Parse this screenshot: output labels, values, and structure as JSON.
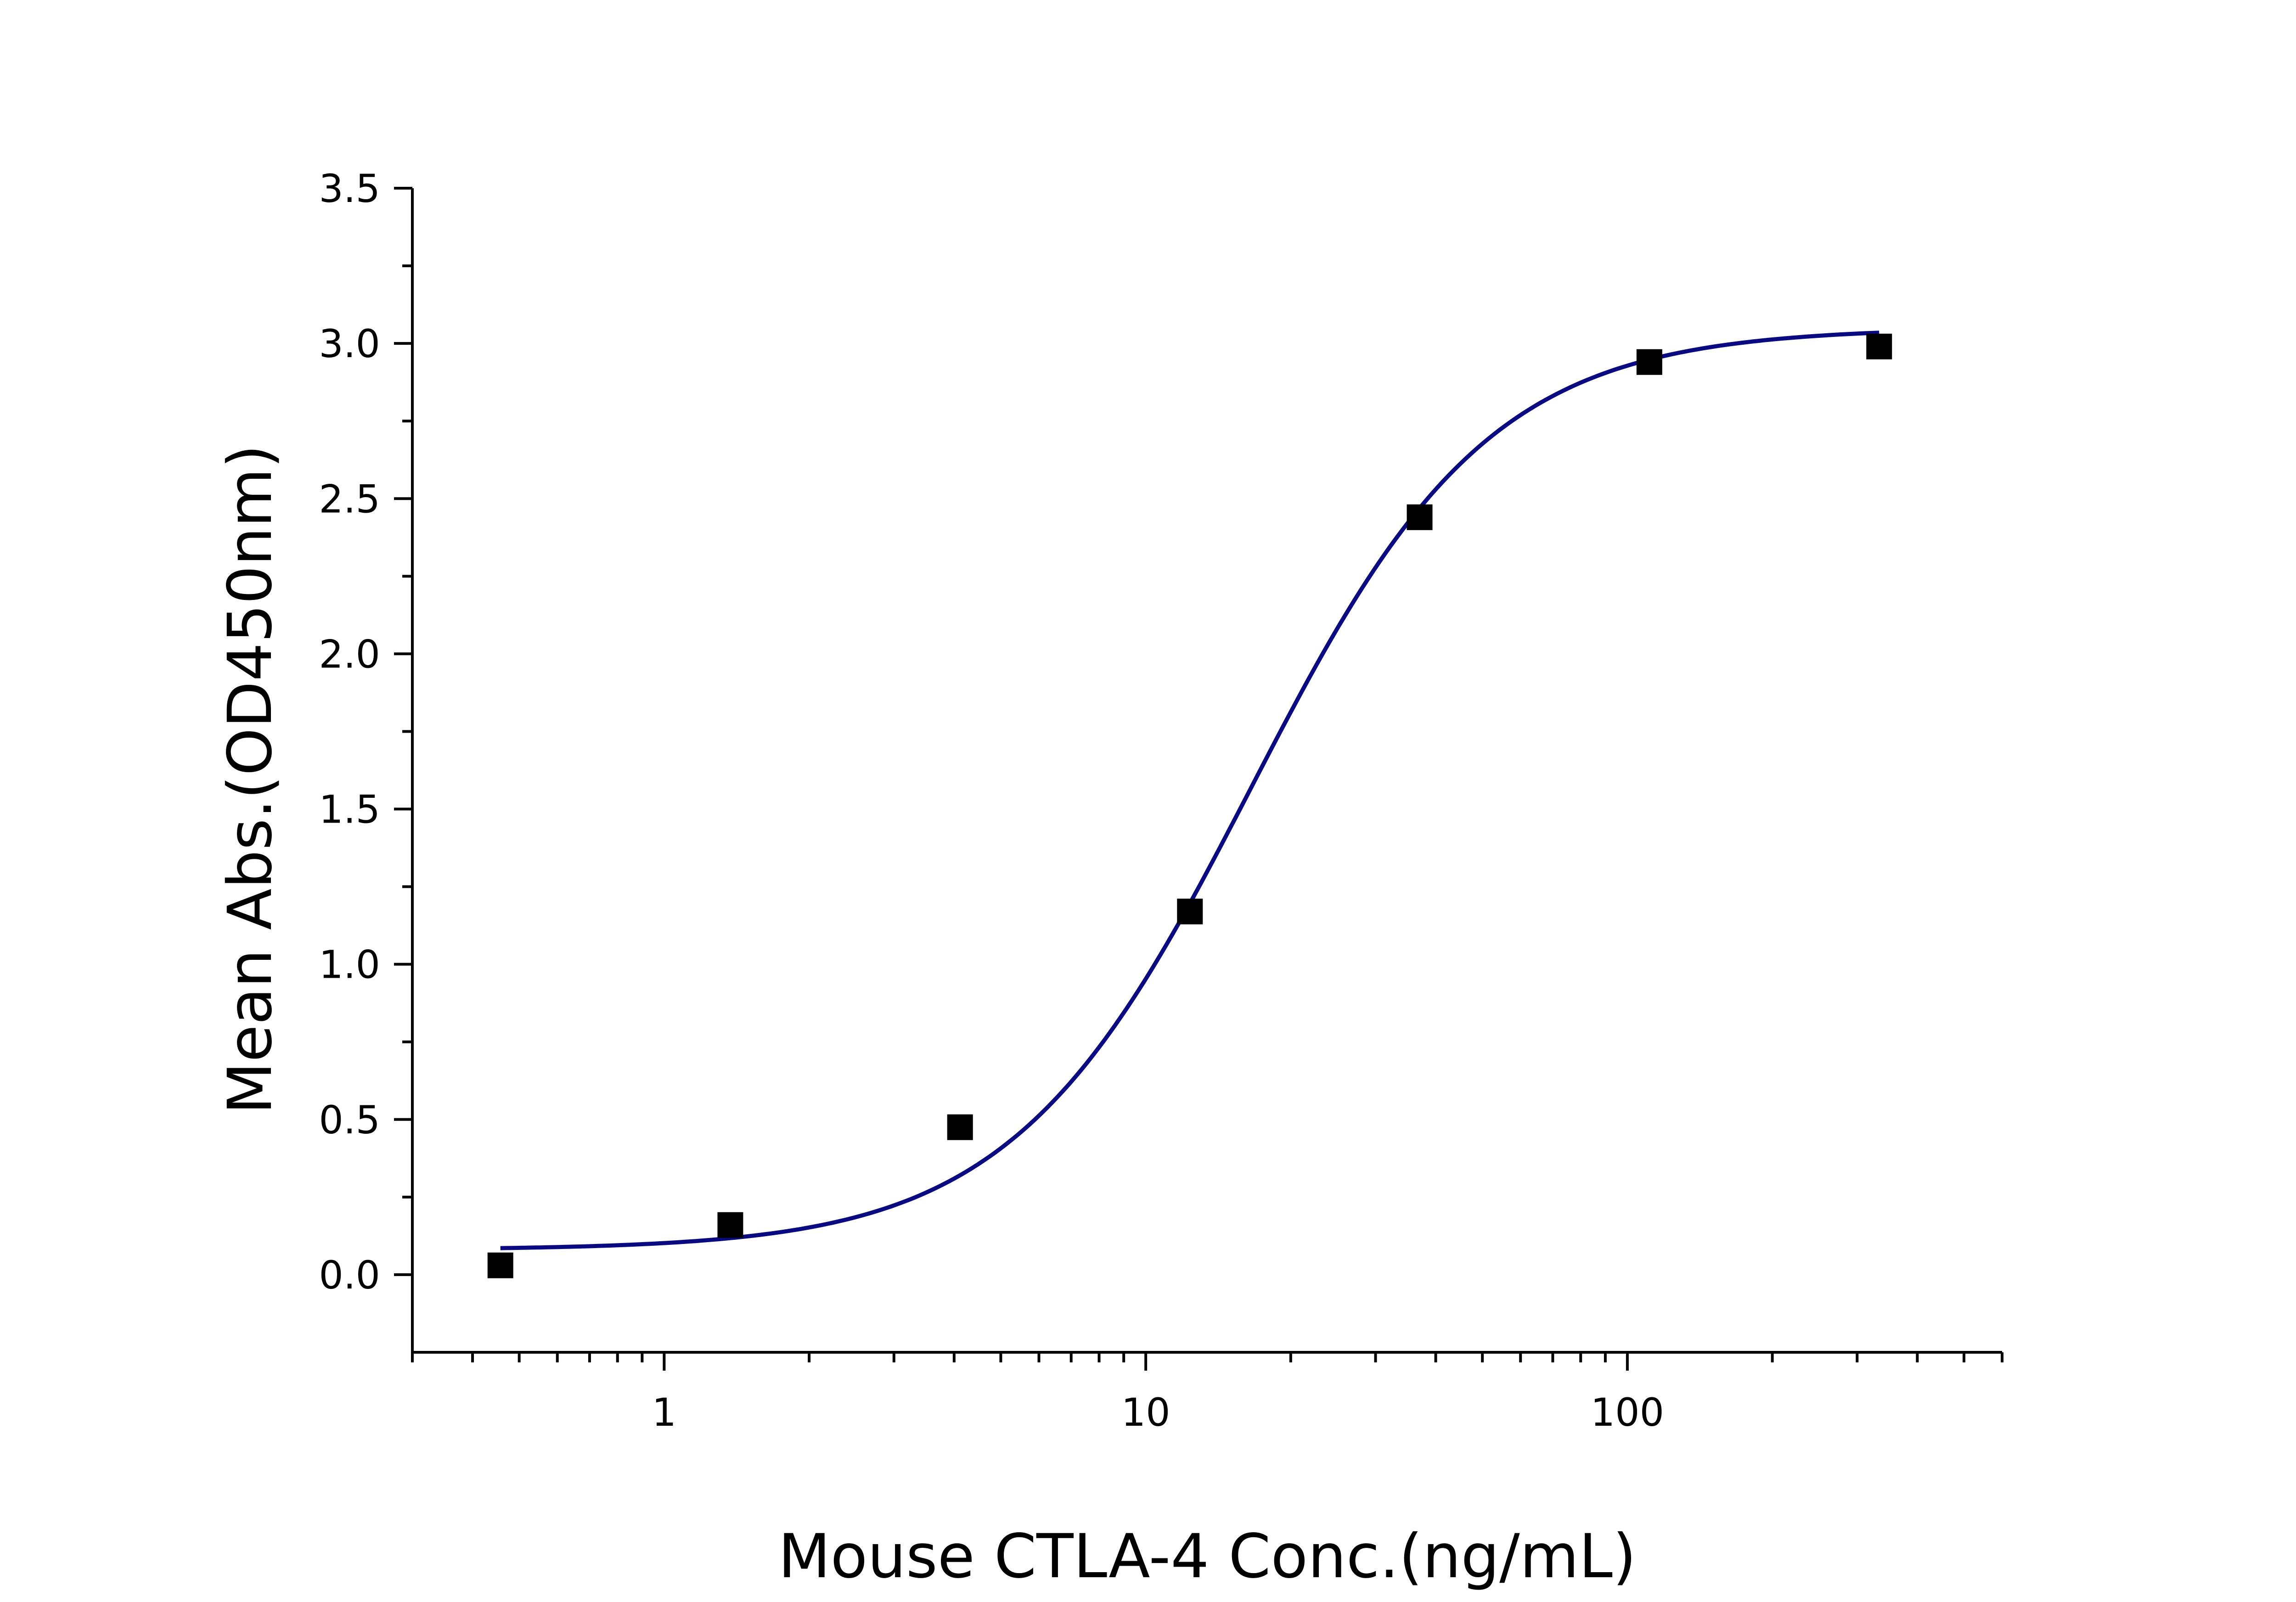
{
  "chart_data": {
    "type": "scatter",
    "title": "",
    "xlabel": "Mouse CTLA-4 Conc.(ng/mL)",
    "ylabel": "Mean Abs.(OD450nm)",
    "x_scale": "log",
    "xlim": [
      0.3,
      600
    ],
    "ylim": [
      -0.25,
      3.5
    ],
    "x_ticks": [
      1,
      10,
      100
    ],
    "x_tick_labels": [
      "1",
      "10",
      "100"
    ],
    "y_ticks": [
      0.0,
      0.5,
      1.0,
      1.5,
      2.0,
      2.5,
      3.0,
      3.5
    ],
    "y_tick_labels": [
      "0.0",
      "0.5",
      "1.0",
      "1.5",
      "2.0",
      "2.5",
      "3.0",
      "3.5"
    ],
    "grid": false,
    "legend": "none",
    "colors": {
      "points": "#000000",
      "curve": "#0a0a80"
    },
    "series": [
      {
        "kind": "points",
        "marker": "square",
        "x": [
          0.457,
          1.372,
          4.115,
          12.35,
          37.04,
          111.1,
          333.3
        ],
        "y": [
          0.03,
          0.16,
          0.475,
          1.17,
          2.44,
          2.94,
          2.99
        ]
      },
      {
        "kind": "fit-curve",
        "model": "4PL",
        "bottom": 0.08,
        "top": 3.05,
        "ec50": 16.5,
        "hill": 1.75,
        "x_range": [
          0.457,
          333.3
        ]
      }
    ]
  }
}
